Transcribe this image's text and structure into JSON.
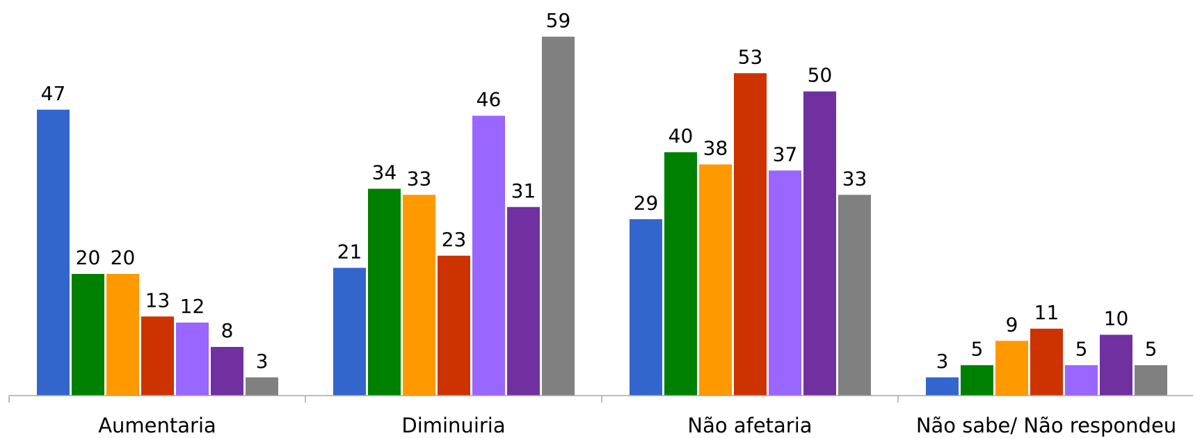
{
  "chart_data": {
    "type": "bar",
    "title": "",
    "xlabel": "",
    "ylabel": "",
    "categories": [
      "Aumentaria",
      "Diminuiria",
      "Não afetaria",
      "Não sabe/ Não respondeu"
    ],
    "ylim": [
      0,
      62
    ],
    "grid": false,
    "legend": "none",
    "series": [
      {
        "color": "#3366cc",
        "values": [
          47,
          21,
          29,
          3
        ]
      },
      {
        "color": "#008000",
        "values": [
          20,
          34,
          40,
          5
        ]
      },
      {
        "color": "#ff9900",
        "values": [
          20,
          33,
          38,
          9
        ]
      },
      {
        "color": "#cc3300",
        "values": [
          13,
          23,
          53,
          11
        ]
      },
      {
        "color": "#9966ff",
        "values": [
          12,
          46,
          37,
          5
        ]
      },
      {
        "color": "#7030a0",
        "values": [
          8,
          31,
          50,
          10
        ]
      },
      {
        "color": "#808080",
        "values": [
          3,
          59,
          33,
          5
        ]
      }
    ]
  }
}
